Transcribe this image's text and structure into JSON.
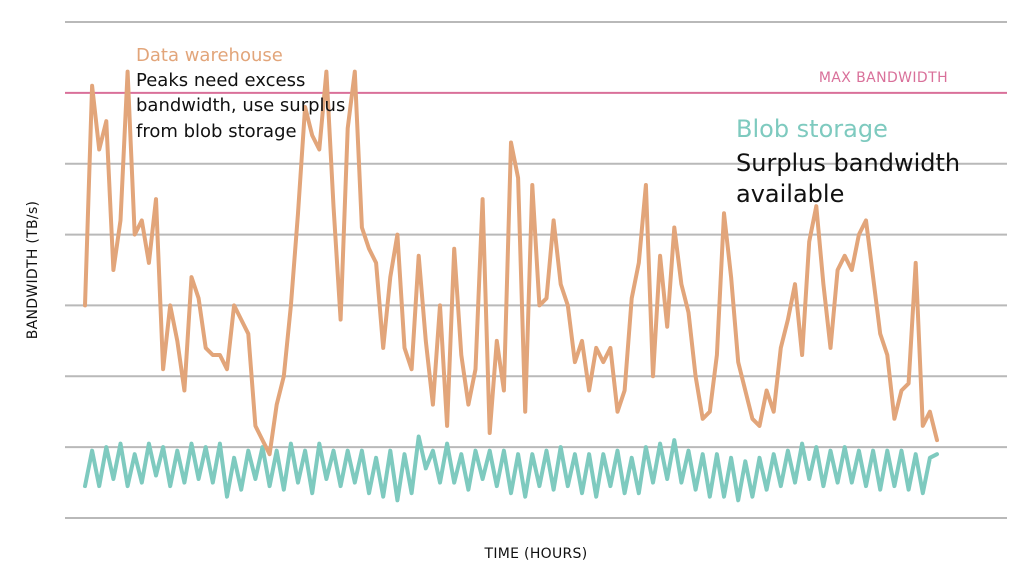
{
  "chart_data": {
    "type": "line",
    "title": "",
    "xlabel": "TIME (HOURS)",
    "ylabel": "BANDWIDTH (TB/s)",
    "ylim": [
      0,
      7
    ],
    "grid": true,
    "ticks_labeled": false,
    "reference_line": {
      "label": "MAX BANDWIDTH",
      "value": 6,
      "color": "#d9709a"
    },
    "annotations": {
      "warehouse": {
        "title": "Data warehouse",
        "lines": [
          "Peaks need excess",
          "bandwidth, use surplus",
          "from blob storage"
        ]
      },
      "blob": {
        "title": "Blob storage",
        "lines": [
          "Surplus bandwidth",
          "available"
        ]
      }
    },
    "series": [
      {
        "name": "Data warehouse",
        "color": "#e2a57a",
        "x": [
          0,
          1,
          2,
          3,
          4,
          5,
          6,
          7,
          8,
          9,
          10,
          11,
          12,
          13,
          14,
          15,
          16,
          17,
          18,
          19,
          20,
          21,
          22,
          23,
          24,
          25,
          26,
          27,
          28,
          29,
          30,
          31,
          32,
          33,
          34,
          35,
          36,
          37,
          38,
          39,
          40,
          41,
          42,
          43,
          44,
          45,
          46,
          47,
          48,
          49,
          50,
          51,
          52,
          53,
          54,
          55,
          56,
          57,
          58,
          59,
          60,
          61,
          62,
          63,
          64,
          65,
          66,
          67,
          68,
          69,
          70,
          71,
          72,
          73,
          74,
          75,
          76,
          77,
          78,
          79,
          80,
          81,
          82,
          83,
          84,
          85,
          86,
          87,
          88,
          89,
          90,
          91,
          92,
          93,
          94,
          95,
          96,
          97,
          98,
          99,
          100,
          101,
          102,
          103,
          104,
          105,
          106,
          107,
          108,
          109,
          110,
          111,
          112,
          113,
          114,
          115,
          116,
          117,
          118,
          119,
          120
        ],
        "values": [
          3.0,
          6.1,
          5.2,
          5.6,
          3.5,
          4.2,
          6.3,
          4.0,
          4.2,
          3.6,
          4.5,
          2.1,
          3.0,
          2.5,
          1.8,
          3.4,
          3.1,
          2.4,
          2.3,
          2.3,
          2.1,
          3.0,
          2.8,
          2.6,
          1.3,
          1.1,
          0.9,
          1.6,
          2.0,
          3.0,
          4.3,
          5.8,
          5.4,
          5.2,
          6.3,
          4.4,
          2.8,
          5.5,
          6.3,
          4.1,
          3.8,
          3.6,
          2.4,
          3.4,
          4.0,
          2.4,
          2.1,
          3.7,
          2.5,
          1.6,
          3.0,
          1.3,
          3.8,
          2.3,
          1.6,
          2.1,
          4.5,
          1.2,
          2.5,
          1.8,
          5.3,
          4.8,
          1.5,
          4.7,
          3.0,
          3.1,
          4.2,
          3.3,
          3.0,
          2.2,
          2.5,
          1.8,
          2.4,
          2.2,
          2.4,
          1.5,
          1.8,
          3.1,
          3.6,
          4.7,
          2.0,
          3.7,
          2.7,
          4.1,
          3.3,
          2.9,
          2.0,
          1.4,
          1.5,
          2.3,
          4.3,
          3.4,
          2.2,
          1.8,
          1.4,
          1.3,
          1.8,
          1.5,
          2.4,
          2.8,
          3.3,
          2.3,
          3.9,
          4.4,
          3.3,
          2.4,
          3.5,
          3.7,
          3.5,
          4.0,
          4.2,
          3.4,
          2.6,
          2.3,
          1.4,
          1.8,
          1.9,
          3.6,
          1.3,
          1.5,
          1.1
        ]
      },
      {
        "name": "Blob storage",
        "color": "#7ecabf",
        "x": [
          0,
          1,
          2,
          3,
          4,
          5,
          6,
          7,
          8,
          9,
          10,
          11,
          12,
          13,
          14,
          15,
          16,
          17,
          18,
          19,
          20,
          21,
          22,
          23,
          24,
          25,
          26,
          27,
          28,
          29,
          30,
          31,
          32,
          33,
          34,
          35,
          36,
          37,
          38,
          39,
          40,
          41,
          42,
          43,
          44,
          45,
          46,
          47,
          48,
          49,
          50,
          51,
          52,
          53,
          54,
          55,
          56,
          57,
          58,
          59,
          60,
          61,
          62,
          63,
          64,
          65,
          66,
          67,
          68,
          69,
          70,
          71,
          72,
          73,
          74,
          75,
          76,
          77,
          78,
          79,
          80,
          81,
          82,
          83,
          84,
          85,
          86,
          87,
          88,
          89,
          90,
          91,
          92,
          93,
          94,
          95,
          96,
          97,
          98,
          99,
          100,
          101,
          102,
          103,
          104,
          105,
          106,
          107,
          108,
          109,
          110,
          111,
          112,
          113,
          114,
          115,
          116,
          117,
          118,
          119,
          120
        ],
        "values": [
          0.45,
          0.95,
          0.45,
          1.0,
          0.55,
          1.05,
          0.45,
          0.9,
          0.5,
          1.05,
          0.6,
          1.0,
          0.45,
          0.95,
          0.5,
          1.05,
          0.55,
          1.0,
          0.5,
          1.05,
          0.3,
          0.85,
          0.4,
          0.95,
          0.55,
          1.0,
          0.45,
          0.95,
          0.4,
          1.05,
          0.5,
          0.95,
          0.35,
          1.05,
          0.55,
          0.95,
          0.45,
          0.95,
          0.5,
          0.95,
          0.35,
          0.85,
          0.3,
          0.95,
          0.25,
          0.9,
          0.35,
          1.15,
          0.7,
          0.95,
          0.5,
          1.05,
          0.5,
          0.9,
          0.4,
          0.95,
          0.55,
          0.95,
          0.45,
          0.95,
          0.35,
          0.9,
          0.3,
          0.9,
          0.45,
          0.95,
          0.4,
          1.0,
          0.45,
          0.9,
          0.35,
          0.9,
          0.3,
          0.9,
          0.45,
          0.95,
          0.35,
          0.85,
          0.35,
          1.0,
          0.5,
          1.05,
          0.55,
          1.1,
          0.5,
          0.95,
          0.4,
          0.9,
          0.3,
          0.9,
          0.3,
          0.85,
          0.25,
          0.8,
          0.3,
          0.85,
          0.4,
          0.9,
          0.45,
          0.95,
          0.5,
          1.05,
          0.55,
          1.0,
          0.45,
          0.95,
          0.5,
          1.0,
          0.5,
          0.95,
          0.45,
          0.95,
          0.4,
          0.95,
          0.45,
          0.95,
          0.4,
          0.9,
          0.35,
          0.85,
          0.9
        ]
      }
    ]
  }
}
